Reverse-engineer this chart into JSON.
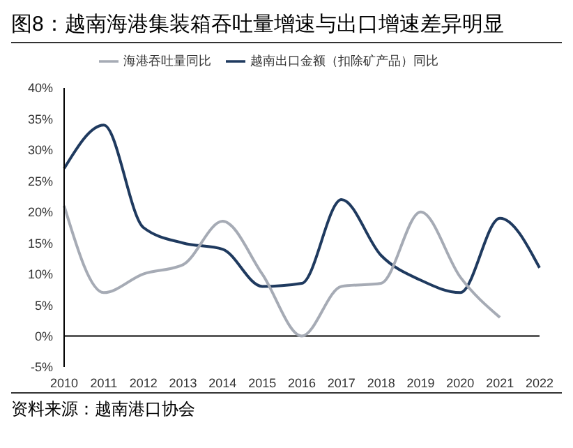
{
  "chart_data": {
    "type": "line",
    "title": "图8：越南海港集装箱吞吐量增速与出口增速差异明显",
    "annotations": [
      "资料来源：越南港口协会"
    ],
    "categories": [
      "2010",
      "2011",
      "2012",
      "2013",
      "2014",
      "2015",
      "2016",
      "2017",
      "2018",
      "2019",
      "2020",
      "2021",
      "2022"
    ],
    "series": [
      {
        "name": "越南出口金额（扣除矿产品）同比",
        "color": "#1f3a5f",
        "values": [
          27,
          34,
          17.5,
          15,
          14,
          8,
          8.5,
          22,
          13,
          9,
          7,
          19,
          11
        ]
      },
      {
        "name": "海港吞吐量同比",
        "color": "#a6abb5",
        "values": [
          21,
          7,
          10,
          11.5,
          18.5,
          10,
          0,
          8,
          8.5,
          20,
          9.5,
          3,
          null
        ]
      }
    ],
    "ylim": [
      -5,
      40
    ],
    "yticks": [
      {
        "value": -5,
        "label": "-5%"
      },
      {
        "value": 0,
        "label": "0%"
      },
      {
        "value": 5,
        "label": "5%"
      },
      {
        "value": 10,
        "label": "10%"
      },
      {
        "value": 15,
        "label": "15%"
      },
      {
        "value": 20,
        "label": "20%"
      },
      {
        "value": 25,
        "label": "25%"
      },
      {
        "value": 30,
        "label": "30%"
      },
      {
        "value": 35,
        "label": "35%"
      },
      {
        "value": 40,
        "label": "40%"
      }
    ],
    "ref_lines": [
      {
        "axis": "y",
        "value": 0,
        "color": "#000000"
      }
    ],
    "grid": false,
    "legend": "top",
    "marker": "none",
    "line_style": "solid"
  }
}
